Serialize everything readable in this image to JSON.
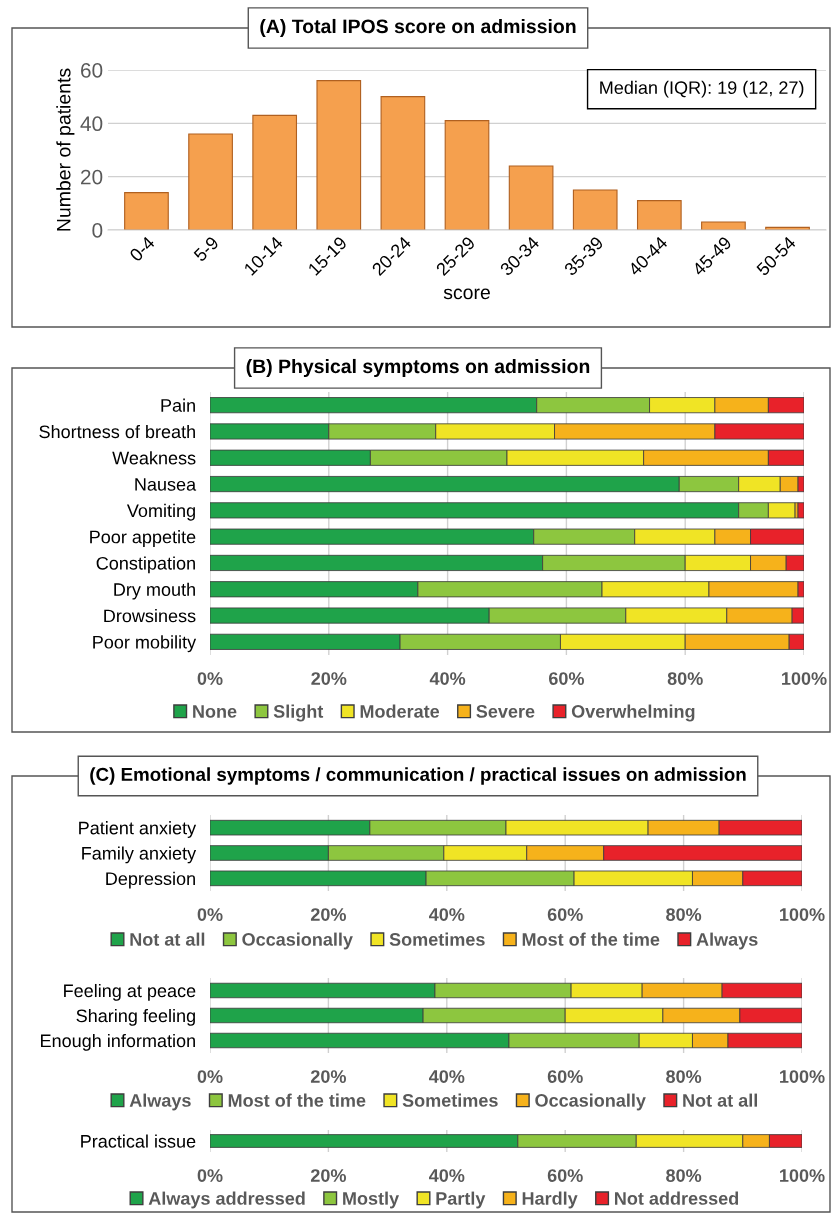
{
  "chart_data": [
    {
      "type": "bar",
      "title": "(A) Total IPOS score on admission",
      "xlabel": "score",
      "ylabel": "Number of patients",
      "categories": [
        "0-4",
        "5-9",
        "10-14",
        "15-19",
        "20-24",
        "25-29",
        "30-34",
        "35-39",
        "40-44",
        "45-49",
        "50-54"
      ],
      "values": [
        14,
        36,
        43,
        56,
        50,
        41,
        24,
        15,
        11,
        3,
        1
      ],
      "color": "#f5a04e",
      "ylim": [
        0,
        60
      ],
      "yticks": [
        0,
        20,
        40,
        60
      ],
      "grid": "y",
      "annotations": [
        "Median (IQR): 19 (12, 27)"
      ]
    },
    {
      "type": "bar",
      "title": "(B) Physical symptoms on admission",
      "orientation": "horizontal",
      "stacked": true,
      "categories": [
        "Pain",
        "Shortness of breath",
        "Weakness",
        "Nausea",
        "Vomiting",
        "Poor appetite",
        "Constipation",
        "Dry mouth",
        "Drowsiness",
        "Poor mobility"
      ],
      "xlim": [
        0,
        100
      ],
      "xticks": [
        {
          "value": 0,
          "label": "0%"
        },
        {
          "value": 20,
          "label": "20%"
        },
        {
          "value": 40,
          "label": "40%"
        },
        {
          "value": 60,
          "label": "60%"
        },
        {
          "value": 80,
          "label": "80%"
        },
        {
          "value": 100,
          "label": "100%"
        }
      ],
      "grid": "x",
      "legend": "bottom",
      "series": [
        {
          "name": "None",
          "color": "#1fa34a",
          "values": [
            55,
            20,
            27,
            79,
            89,
            54.5,
            56,
            35,
            47,
            32
          ]
        },
        {
          "name": "Slight",
          "color": "#8dc63f",
          "values": [
            19,
            18,
            23,
            10,
            5,
            17,
            24,
            31,
            23,
            27
          ]
        },
        {
          "name": "Moderate",
          "color": "#f0e425",
          "values": [
            11,
            20,
            23,
            7,
            4.5,
            13.5,
            11,
            18,
            17,
            21
          ]
        },
        {
          "name": "Severe",
          "color": "#f6b21b",
          "values": [
            9,
            27,
            21,
            3,
            0.5,
            6,
            6,
            15,
            11,
            17.5
          ]
        },
        {
          "name": "Overwhelming",
          "color": "#e8222a",
          "values": [
            6,
            15,
            6,
            1,
            1,
            9,
            3,
            1,
            2,
            2.5
          ]
        }
      ]
    },
    {
      "type": "bar",
      "title": "(C) Emotional symptoms / communication / practical issues on admission",
      "orientation": "horizontal",
      "stacked": true,
      "categories": [
        "Patient anxiety",
        "Family anxiety",
        "Depression"
      ],
      "xlim": [
        0,
        100
      ],
      "xticks": [
        {
          "value": 0,
          "label": "0%"
        },
        {
          "value": 20,
          "label": "20%"
        },
        {
          "value": 40,
          "label": "40%"
        },
        {
          "value": 60,
          "label": "60%"
        },
        {
          "value": 80,
          "label": "80%"
        },
        {
          "value": 100,
          "label": "100%"
        }
      ],
      "grid": "x",
      "legend": "bottom",
      "series": [
        {
          "name": "Not at all",
          "color": "#1fa34a",
          "values": [
            27,
            20,
            36.5
          ]
        },
        {
          "name": "Occasionally",
          "color": "#8dc63f",
          "values": [
            23,
            19.5,
            25
          ]
        },
        {
          "name": "Sometimes",
          "color": "#f0e425",
          "values": [
            24,
            14,
            20
          ]
        },
        {
          "name": "Most of the time",
          "color": "#f6b21b",
          "values": [
            12,
            13,
            8.5
          ]
        },
        {
          "name": "Always",
          "color": "#e8222a",
          "values": [
            14,
            33.5,
            10
          ]
        }
      ]
    },
    {
      "type": "bar",
      "orientation": "horizontal",
      "stacked": true,
      "categories": [
        "Feeling at peace",
        "Sharing feeling",
        "Enough information"
      ],
      "xlim": [
        0,
        100
      ],
      "xticks": [
        {
          "value": 0,
          "label": "0%"
        },
        {
          "value": 20,
          "label": "20%"
        },
        {
          "value": 40,
          "label": "40%"
        },
        {
          "value": 60,
          "label": "60%"
        },
        {
          "value": 80,
          "label": "80%"
        },
        {
          "value": 100,
          "label": "100%"
        }
      ],
      "grid": "x",
      "legend": "bottom",
      "series": [
        {
          "name": "Always",
          "color": "#1fa34a",
          "values": [
            38,
            36,
            50.5
          ]
        },
        {
          "name": "Most of the time",
          "color": "#8dc63f",
          "values": [
            23,
            24,
            22
          ]
        },
        {
          "name": "Sometimes",
          "color": "#f0e425",
          "values": [
            12,
            16.5,
            9
          ]
        },
        {
          "name": "Occasionally",
          "color": "#f6b21b",
          "values": [
            13.5,
            13,
            6
          ]
        },
        {
          "name": "Not at all",
          "color": "#e8222a",
          "values": [
            13.5,
            10.5,
            12.5
          ]
        }
      ]
    },
    {
      "type": "bar",
      "orientation": "horizontal",
      "stacked": true,
      "categories": [
        "Practical issue"
      ],
      "xlim": [
        0,
        100
      ],
      "xticks": [
        {
          "value": 0,
          "label": "0%"
        },
        {
          "value": 20,
          "label": "20%"
        },
        {
          "value": 40,
          "label": "40%"
        },
        {
          "value": 60,
          "label": "60%"
        },
        {
          "value": 80,
          "label": "80%"
        },
        {
          "value": 100,
          "label": "100%"
        }
      ],
      "grid": "x",
      "legend": "bottom",
      "series": [
        {
          "name": "Always addressed",
          "color": "#1fa34a",
          "values": [
            52
          ]
        },
        {
          "name": "Mostly",
          "color": "#8dc63f",
          "values": [
            20
          ]
        },
        {
          "name": "Partly",
          "color": "#f0e425",
          "values": [
            18
          ]
        },
        {
          "name": "Hardly",
          "color": "#f6b21b",
          "values": [
            4.5
          ]
        },
        {
          "name": "Not addressed",
          "color": "#e8222a",
          "values": [
            5.5
          ]
        }
      ]
    }
  ]
}
